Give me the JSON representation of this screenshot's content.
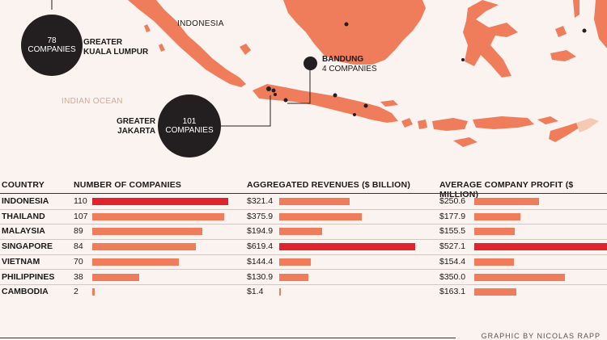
{
  "map": {
    "labels": {
      "indonesia": "INDONESIA",
      "ocean": "INDIAN OCEAN"
    },
    "colors": {
      "land": "#ef7d5c",
      "land_light": "#f6c9b5",
      "sea": "#fbf3ef",
      "bubble": "#231f20"
    },
    "cities": {
      "kl": {
        "count": "78",
        "unit": "COMPANIES",
        "name_line1": "GREATER",
        "name_line2": "KUALA LUMPUR"
      },
      "jakarta": {
        "count": "101",
        "unit": "COMPANIES",
        "name_line1": "GREATER",
        "name_line2": "JAKARTA"
      },
      "bandung": {
        "name": "BANDUNG",
        "sub": "4 COMPANIES"
      }
    }
  },
  "table": {
    "headers": {
      "country": "COUNTRY",
      "companies": "NUMBER OF COMPANIES",
      "revenues": "AGGREGATED REVENUES ($ BILLION)",
      "profit": "AVERAGE COMPANY PROFIT ($ MILLION)"
    },
    "rows": [
      {
        "country": "INDONESIA",
        "companies": "110",
        "revenues": "$321.4",
        "profit": "$250.6"
      },
      {
        "country": "THAILAND",
        "companies": "107",
        "revenues": "$375.9",
        "profit": "$177.9"
      },
      {
        "country": "MALAYSIA",
        "companies": "89",
        "revenues": "$194.9",
        "profit": "$155.5"
      },
      {
        "country": "SINGAPORE",
        "companies": "84",
        "revenues": "$619.4",
        "profit": "$527.1"
      },
      {
        "country": "VIETNAM",
        "companies": "70",
        "revenues": "$144.4",
        "profit": "$154.4"
      },
      {
        "country": "PHILIPPINES",
        "companies": "38",
        "revenues": "$130.9",
        "profit": "$350.0"
      },
      {
        "country": "CAMBODIA",
        "companies": "2",
        "revenues": "$1.4",
        "profit": "$163.1"
      }
    ],
    "colors": {
      "normal": "#ef7d5c",
      "highlight": "#e0242d"
    }
  },
  "credit": "GRAPHIC BY NICOLAS RAPP"
}
